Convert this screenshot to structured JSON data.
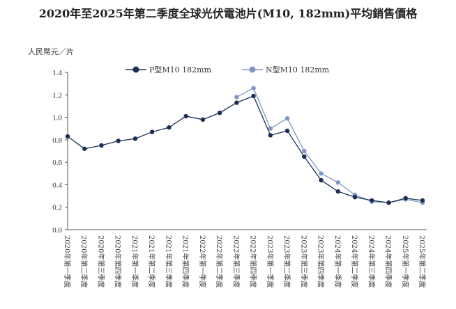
{
  "chart_data": {
    "type": "line",
    "title": "2020年至2025年第二季度全球光伏電池片(M10, 182mm)平均銷售價格",
    "ylabel": "人民幣元／片",
    "xlabel": "",
    "ylim": [
      0,
      1.4
    ],
    "yticks": [
      "0.0",
      "0.2",
      "0.4",
      "0.6",
      "0.8",
      "1.0",
      "1.2",
      "1.4"
    ],
    "grid": false,
    "legend": "top",
    "categories": [
      "2020年第一季度",
      "2020年第二季度",
      "2020年第三季度",
      "2020年第四季度",
      "2021年第一季度",
      "2021年第二季度",
      "2021年第三季度",
      "2021年第四季度",
      "2022年第一季度",
      "2022年第二季度",
      "2022年第三季度",
      "2022年第四季度",
      "2023年第一季度",
      "2023年第二季度",
      "2023年第三季度",
      "2023年第四季度",
      "2024年第一季度",
      "2024年第二季度",
      "2024年第三季度",
      "2024年第四季度",
      "2025年第一季度",
      "2025年第二季度"
    ],
    "series": [
      {
        "name": "P型M10 182mm",
        "color": "#1b2f52",
        "values": [
          0.83,
          0.72,
          0.75,
          0.79,
          0.81,
          0.87,
          0.91,
          1.01,
          0.98,
          1.04,
          1.13,
          1.19,
          0.84,
          0.88,
          0.65,
          0.44,
          0.34,
          0.29,
          0.26,
          0.24,
          0.28,
          0.26
        ]
      },
      {
        "name": "N型M10 182mm",
        "color": "#7f97c6",
        "values": [
          null,
          null,
          null,
          null,
          null,
          null,
          null,
          null,
          null,
          null,
          1.18,
          1.26,
          0.9,
          0.99,
          0.7,
          0.5,
          0.42,
          0.31,
          0.25,
          0.24,
          0.27,
          0.24
        ]
      }
    ]
  }
}
